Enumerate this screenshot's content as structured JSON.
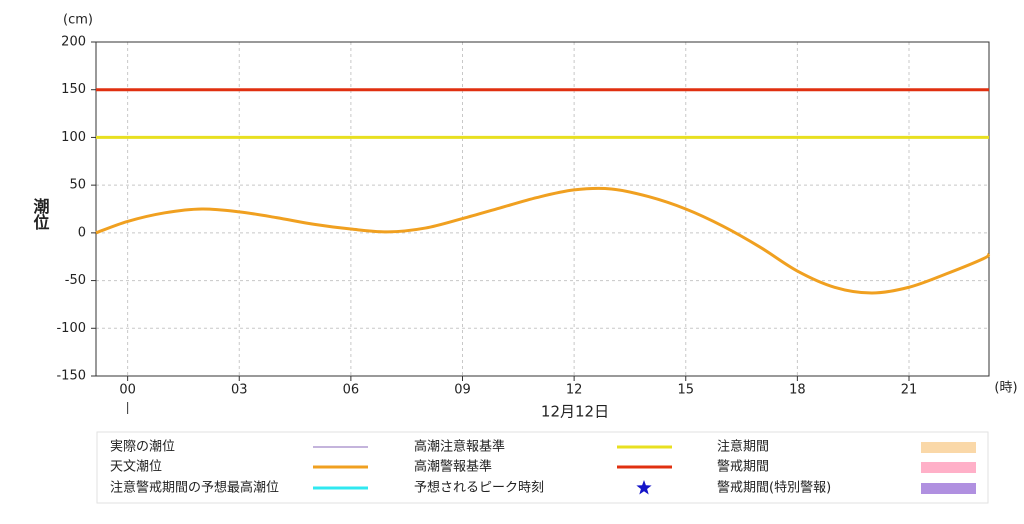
{
  "chart_data": {
    "type": "line",
    "y_label": "潮位",
    "y_unit": "(cm)",
    "x_unit": "(時)",
    "date_label": "12月12日",
    "xlim": [
      -0.85,
      23.15
    ],
    "ylim": [
      -150,
      200
    ],
    "xticks": [
      {
        "value": 0,
        "label": "00"
      },
      {
        "value": 3,
        "label": "03"
      },
      {
        "value": 6,
        "label": "06"
      },
      {
        "value": 9,
        "label": "09"
      },
      {
        "value": 12,
        "label": "12"
      },
      {
        "value": 15,
        "label": "15"
      },
      {
        "value": 18,
        "label": "18"
      },
      {
        "value": 21,
        "label": "21"
      }
    ],
    "yticks": [
      200,
      150,
      100,
      50,
      0,
      -50,
      -100,
      -150
    ],
    "grid": true,
    "series": [
      {
        "name": "実際の潮位",
        "color": "#b09cd0",
        "symbol": "line"
      },
      {
        "name": "天文潮位",
        "color": "#f0a020",
        "symbol": "line",
        "x": [
          -0.85,
          0,
          1,
          2,
          3,
          4,
          5,
          6,
          7,
          8,
          9,
          10,
          11,
          12,
          13,
          14,
          15,
          16,
          17,
          18,
          19,
          20,
          21,
          22,
          23,
          23.15
        ],
        "values": [
          0,
          12,
          21,
          25,
          22,
          16,
          9,
          4,
          1,
          5,
          15,
          26,
          37,
          45,
          46,
          38,
          25,
          7,
          -15,
          -40,
          -57,
          -63,
          -57,
          -43,
          -27,
          -22
        ]
      },
      {
        "name": "注意警戒期間の予想最高潮位",
        "color": "#30e8f0",
        "symbol": "line"
      },
      {
        "name": "高潮注意報基準",
        "color": "#e8e020",
        "symbol": "line",
        "value": 100
      },
      {
        "name": "高潮警報基準",
        "color": "#e03010",
        "symbol": "line",
        "value": 150
      },
      {
        "name": "予想されるピーク時刻",
        "color": "#1414c8",
        "symbol": "star"
      },
      {
        "name": "注意期間",
        "color": "#fad8a8",
        "symbol": "rect"
      },
      {
        "name": "警戒期間",
        "color": "#ffb0c8",
        "symbol": "rect"
      },
      {
        "name": "警戒期間(特別警報)",
        "color": "#b090e0",
        "symbol": "rect"
      }
    ]
  }
}
